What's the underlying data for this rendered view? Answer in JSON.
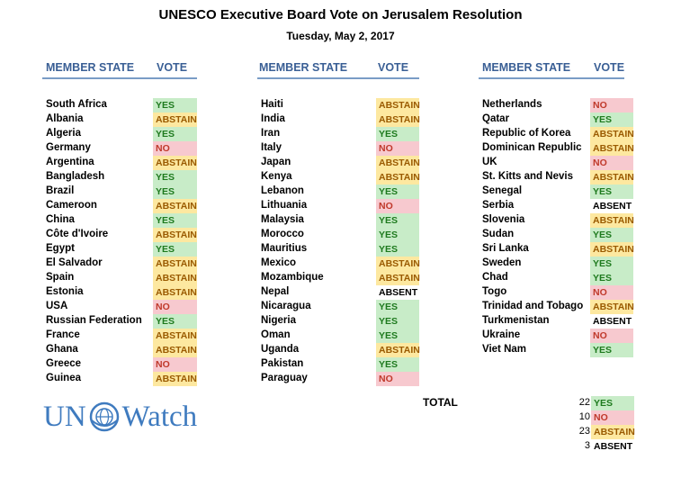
{
  "title": "UNESCO Executive Board Vote on Jerusalem Resolution",
  "subtitle": "Tuesday, May 2, 2017",
  "headers": {
    "member_state": "MEMBER STATE",
    "vote": "VOTE"
  },
  "columns": [
    [
      {
        "country": "South Africa",
        "vote": "YES"
      },
      {
        "country": "Albania",
        "vote": "ABSTAIN"
      },
      {
        "country": "Algeria",
        "vote": "YES"
      },
      {
        "country": "Germany",
        "vote": "NO"
      },
      {
        "country": "Argentina",
        "vote": "ABSTAIN"
      },
      {
        "country": "Bangladesh",
        "vote": "YES"
      },
      {
        "country": "Brazil",
        "vote": "YES"
      },
      {
        "country": "Cameroon",
        "vote": "ABSTAIN"
      },
      {
        "country": "China",
        "vote": "YES"
      },
      {
        "country": "Côte d'Ivoire",
        "vote": "ABSTAIN"
      },
      {
        "country": "Egypt",
        "vote": "YES"
      },
      {
        "country": "El Salvador",
        "vote": "ABSTAIN"
      },
      {
        "country": "Spain",
        "vote": "ABSTAIN"
      },
      {
        "country": "Estonia",
        "vote": "ABSTAIN"
      },
      {
        "country": "USA",
        "vote": "NO"
      },
      {
        "country": "Russian Federation",
        "vote": "YES"
      },
      {
        "country": "France",
        "vote": "ABSTAIN"
      },
      {
        "country": "Ghana",
        "vote": "ABSTAIN"
      },
      {
        "country": "Greece",
        "vote": "NO"
      },
      {
        "country": "Guinea",
        "vote": "ABSTAIN"
      }
    ],
    [
      {
        "country": "Haiti",
        "vote": "ABSTAIN"
      },
      {
        "country": "India",
        "vote": "ABSTAIN"
      },
      {
        "country": "Iran",
        "vote": "YES"
      },
      {
        "country": "Italy",
        "vote": "NO"
      },
      {
        "country": "Japan",
        "vote": "ABSTAIN"
      },
      {
        "country": "Kenya",
        "vote": "ABSTAIN"
      },
      {
        "country": "Lebanon",
        "vote": "YES"
      },
      {
        "country": "Lithuania",
        "vote": "NO"
      },
      {
        "country": "Malaysia",
        "vote": "YES"
      },
      {
        "country": "Morocco",
        "vote": "YES"
      },
      {
        "country": "Mauritius",
        "vote": "YES"
      },
      {
        "country": "Mexico",
        "vote": "ABSTAIN"
      },
      {
        "country": "Mozambique",
        "vote": "ABSTAIN"
      },
      {
        "country": "Nepal",
        "vote": "ABSENT"
      },
      {
        "country": "Nicaragua",
        "vote": "YES"
      },
      {
        "country": "Nigeria",
        "vote": "YES"
      },
      {
        "country": "Oman",
        "vote": "YES"
      },
      {
        "country": "Uganda",
        "vote": "ABSTAIN"
      },
      {
        "country": "Pakistan",
        "vote": "YES"
      },
      {
        "country": "Paraguay",
        "vote": "NO"
      }
    ],
    [
      {
        "country": "Netherlands",
        "vote": "NO"
      },
      {
        "country": "Qatar",
        "vote": "YES"
      },
      {
        "country": "Republic of Korea",
        "vote": "ABSTAIN"
      },
      {
        "country": "Dominican Republic",
        "vote": "ABSTAIN"
      },
      {
        "country": "UK",
        "vote": "NO"
      },
      {
        "country": "St. Kitts and Nevis",
        "vote": "ABSTAIN"
      },
      {
        "country": "Senegal",
        "vote": "YES"
      },
      {
        "country": "Serbia",
        "vote": "ABSENT"
      },
      {
        "country": "Slovenia",
        "vote": "ABSTAIN"
      },
      {
        "country": "Sudan",
        "vote": "YES"
      },
      {
        "country": "Sri Lanka",
        "vote": "ABSTAIN"
      },
      {
        "country": "Sweden",
        "vote": "YES"
      },
      {
        "country": "Chad",
        "vote": "YES"
      },
      {
        "country": "Togo",
        "vote": "NO"
      },
      {
        "country": "Trinidad and Tobago",
        "vote": "ABSTAIN"
      },
      {
        "country": "Turkmenistan",
        "vote": "ABSENT"
      },
      {
        "country": "Ukraine",
        "vote": "NO"
      },
      {
        "country": "Viet Nam",
        "vote": "YES"
      }
    ]
  ],
  "total_label": "TOTAL",
  "totals": [
    {
      "count": "22",
      "vote": "YES"
    },
    {
      "count": "10",
      "vote": "NO"
    },
    {
      "count": "23",
      "vote": "ABSTAIN"
    },
    {
      "count": "3",
      "vote": "ABSENT"
    }
  ],
  "logo": {
    "text_left": "UN",
    "text_right": "Watch",
    "icon": "un-emblem-icon"
  },
  "colors": {
    "header_text": "#3a5f95",
    "header_rule": "#7a9cc6",
    "yes_bg": "#c8ecc8",
    "yes_text": "#1e7a1e",
    "abstain_bg": "#fde8a0",
    "abstain_text": "#9a5a00",
    "no_bg": "#f7c9cf",
    "no_text": "#c0392b",
    "logo": "#3f7bbf"
  }
}
